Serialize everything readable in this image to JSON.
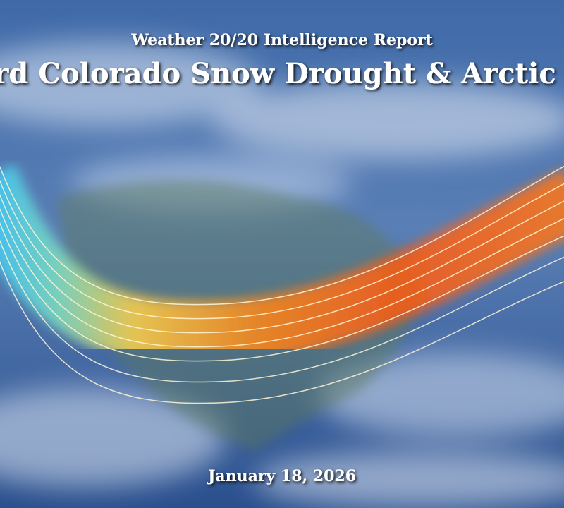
{
  "header": {
    "subtitle": "Weather 20/20 Intelligence Report",
    "title": "Record Colorado Snow Drought & Arctic Blast"
  },
  "footer": {
    "date": "January 18, 2026"
  }
}
